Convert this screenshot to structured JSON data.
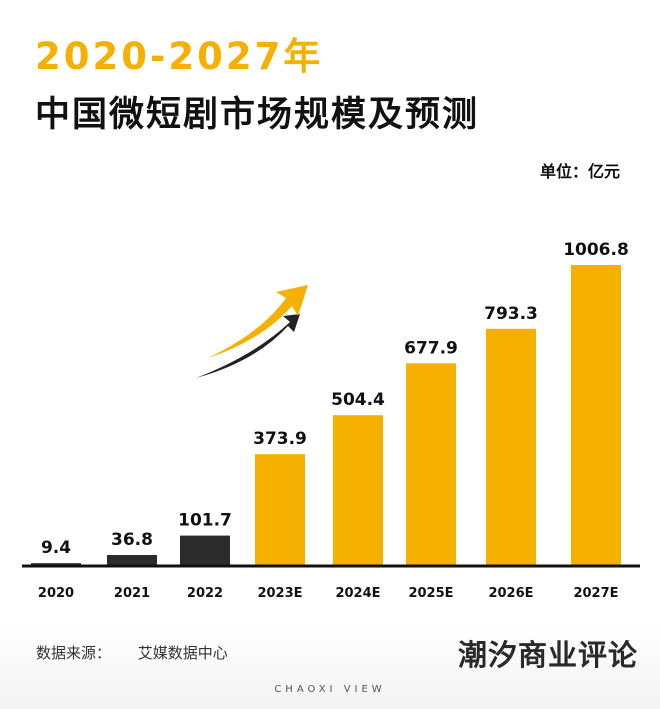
{
  "header": {
    "years": "2020-2027年",
    "title": "中国微短剧市场规模及预测",
    "unit": "单位：亿元"
  },
  "footer": {
    "source_label": "数据来源：",
    "source_value": "艾媒数据中心",
    "brand": "潮汐商业评论",
    "watermark": "CHAOXI VIEW"
  },
  "colors": {
    "actual": "#2b2b2b",
    "forecast": "#f6b100",
    "baseline": "#111111"
  },
  "chart_data": {
    "type": "bar",
    "title": "中国微短剧市场规模及预测",
    "ylabel": "单位：亿元",
    "categories": [
      "2020",
      "2021",
      "2022",
      "2023E",
      "2024E",
      "2025E",
      "2026E",
      "2027E"
    ],
    "values": [
      9.4,
      36.8,
      101.7,
      373.9,
      504.4,
      677.9,
      793.3,
      1006.8
    ],
    "value_labels": [
      "9.4",
      "36.8",
      "101.7",
      "373.9",
      "504.4",
      "677.9",
      "793.3",
      "1006.8"
    ],
    "forecast": [
      false,
      false,
      false,
      true,
      true,
      true,
      true,
      true
    ],
    "ylim": [
      0,
      1006.8
    ],
    "grid": false,
    "decoration": "upward-arrow-icon"
  }
}
